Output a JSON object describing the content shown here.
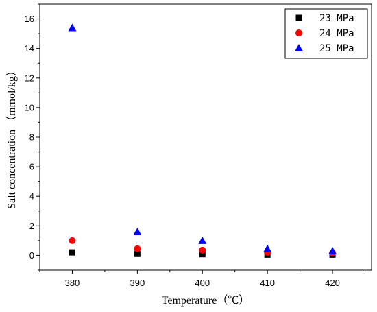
{
  "chart_data": {
    "type": "scatter",
    "xlabel": "Temperature（℃）",
    "ylabel": "Salt concentration （mmol/kg）",
    "x": [
      380,
      390,
      400,
      410,
      420
    ],
    "xticks": [
      "380",
      "390",
      "400",
      "410",
      "420"
    ],
    "xlim": [
      375,
      426
    ],
    "ylim": [
      -1,
      17
    ],
    "yticks": [
      "0",
      "2",
      "4",
      "6",
      "8",
      "10",
      "12",
      "14",
      "16"
    ],
    "legend_position": "top-right",
    "grid": false,
    "series": [
      {
        "name": "23 MPa",
        "marker": "square",
        "color": "#000000",
        "values": [
          0.2,
          0.1,
          0.08,
          0.05,
          0.05
        ]
      },
      {
        "name": "24 MPa",
        "marker": "circle",
        "color": "#ff0000",
        "values": [
          1.0,
          0.45,
          0.35,
          0.2,
          0.15
        ]
      },
      {
        "name": "25 MPa",
        "marker": "triangle",
        "color": "#0000ff",
        "values": [
          15.4,
          1.6,
          1.0,
          0.45,
          0.3
        ]
      }
    ]
  }
}
